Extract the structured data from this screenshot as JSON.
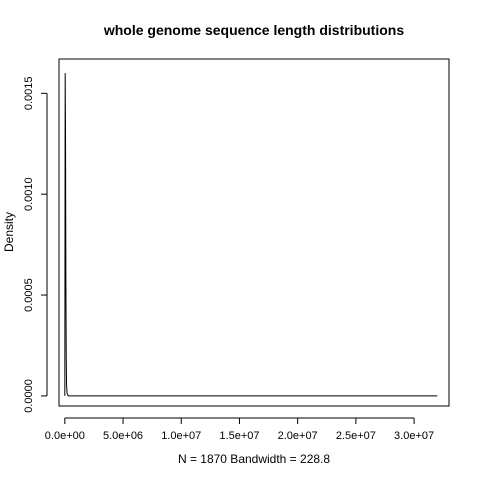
{
  "chart_data": {
    "type": "line",
    "title": "whole genome sequence length distributions",
    "xlabel": "N = 1870   Bandwidth = 228.8",
    "ylabel": "Density",
    "xlim": [
      -500000,
      33000000
    ],
    "ylim": [
      -5e-05,
      0.00167
    ],
    "x_ticks": [
      {
        "value": 0,
        "label": "0.0e+00"
      },
      {
        "value": 5000000,
        "label": "5.0e+06"
      },
      {
        "value": 10000000,
        "label": "1.0e+07"
      },
      {
        "value": 15000000,
        "label": "1.5e+07"
      },
      {
        "value": 20000000,
        "label": "2.0e+07"
      },
      {
        "value": 25000000,
        "label": "2.5e+07"
      },
      {
        "value": 30000000,
        "label": "3.0e+07"
      }
    ],
    "y_ticks": [
      {
        "value": 0,
        "label": "0.0000"
      },
      {
        "value": 0.0005,
        "label": "0.0005"
      },
      {
        "value": 0.001,
        "label": "0.0010"
      },
      {
        "value": 0.0015,
        "label": "0.0015"
      }
    ],
    "series": [
      {
        "x": [
          0,
          30000,
          60000,
          90000,
          120000,
          150000,
          200000,
          300000,
          1000000,
          10000000,
          20000000,
          32000000
        ],
        "y": [
          0.0,
          0.0016,
          0.0013,
          0.0006,
          0.0002,
          5e-05,
          1e-05,
          0.0,
          0.0,
          0.0,
          0.0,
          0.0
        ]
      }
    ],
    "grid": false,
    "line_color": "#000000"
  }
}
